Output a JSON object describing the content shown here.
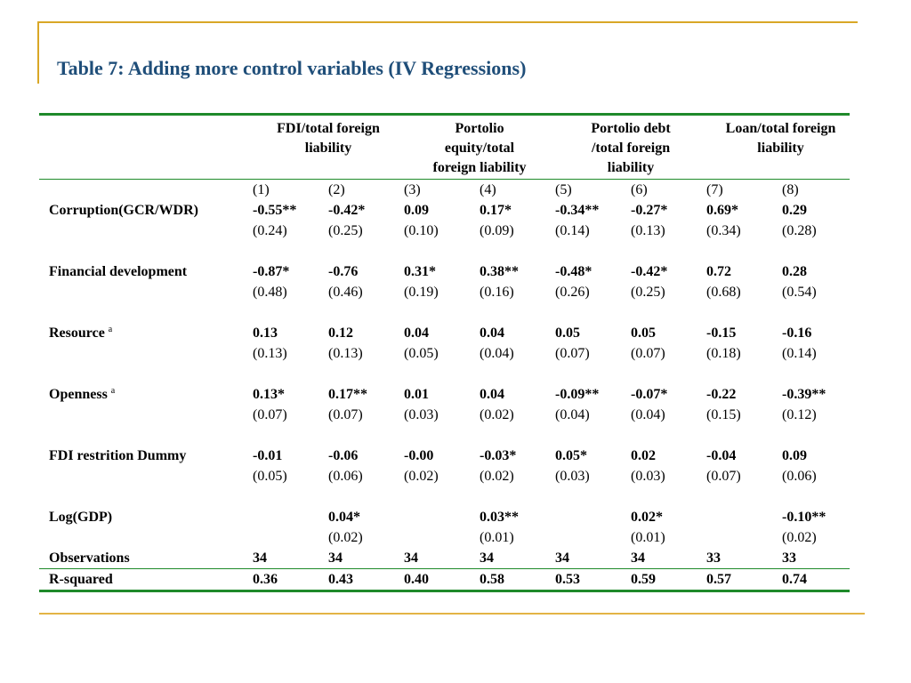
{
  "title": "Table 7: Adding more control variables (IV Regressions)",
  "column_groups": [
    "FDI/total foreign liability",
    "Portolio equity/total foreign liability",
    "Portolio debt /total foreign liability",
    "Loan/total foreign liability"
  ],
  "column_numbers": [
    "(1)",
    "(2)",
    "(3)",
    "(4)",
    "(5)",
    "(6)",
    "(7)",
    "(8)"
  ],
  "rows": [
    {
      "label": "Corruption(GCR/WDR)",
      "sup": "",
      "coef": [
        "-0.55**",
        "-0.42*",
        "0.09",
        "0.17*",
        "-0.34**",
        "-0.27*",
        "0.69*",
        "0.29"
      ],
      "se": [
        "(0.24)",
        "(0.25)",
        "(0.10)",
        "(0.09)",
        "(0.14)",
        "(0.13)",
        "(0.34)",
        "(0.28)"
      ]
    },
    {
      "label": "Financial development",
      "sup": "",
      "coef": [
        "-0.87*",
        "-0.76",
        "0.31*",
        "0.38**",
        "-0.48*",
        "-0.42*",
        "0.72",
        "0.28"
      ],
      "se": [
        "(0.48)",
        "(0.46)",
        "(0.19)",
        "(0.16)",
        "(0.26)",
        "(0.25)",
        "(0.68)",
        "(0.54)"
      ]
    },
    {
      "label": "Resource",
      "sup": "a",
      "coef": [
        "0.13",
        "0.12",
        "0.04",
        "0.04",
        "0.05",
        "0.05",
        "-0.15",
        "-0.16"
      ],
      "se": [
        "(0.13)",
        "(0.13)",
        "(0.05)",
        "(0.04)",
        "(0.07)",
        "(0.07)",
        "(0.18)",
        "(0.14)"
      ]
    },
    {
      "label": "Openness",
      "sup": "a",
      "coef": [
        "0.13*",
        "0.17**",
        "0.01",
        "0.04",
        "-0.09**",
        "-0.07*",
        "-0.22",
        "-0.39**"
      ],
      "se": [
        "(0.07)",
        "(0.07)",
        "(0.03)",
        "(0.02)",
        "(0.04)",
        "(0.04)",
        "(0.15)",
        "(0.12)"
      ]
    },
    {
      "label": "FDI restrition Dummy",
      "sup": "",
      "coef": [
        "-0.01",
        "-0.06",
        "-0.00",
        "-0.03*",
        "0.05*",
        "0.02",
        "-0.04",
        "0.09"
      ],
      "se": [
        "(0.05)",
        "(0.06)",
        "(0.02)",
        "(0.02)",
        "(0.03)",
        "(0.03)",
        "(0.07)",
        "(0.06)"
      ]
    },
    {
      "label": "Log(GDP)",
      "sup": "",
      "coef": [
        "",
        "0.04*",
        "",
        "0.03**",
        "",
        "0.02*",
        "",
        "-0.10**"
      ],
      "se": [
        "",
        "(0.02)",
        "",
        "(0.01)",
        "",
        "(0.01)",
        "",
        "(0.02)"
      ]
    }
  ],
  "observations": {
    "label": "Observations",
    "values": [
      "34",
      "34",
      "34",
      "34",
      "34",
      "34",
      "33",
      "33"
    ]
  },
  "r_squared": {
    "label": "R-squared",
    "values": [
      "0.36",
      "0.43",
      "0.40",
      "0.58",
      "0.53",
      "0.59",
      "0.57",
      "0.74"
    ]
  },
  "colors": {
    "title": "#1f4e79",
    "rule": "#1f8a2a",
    "frame": "#d9a726"
  }
}
